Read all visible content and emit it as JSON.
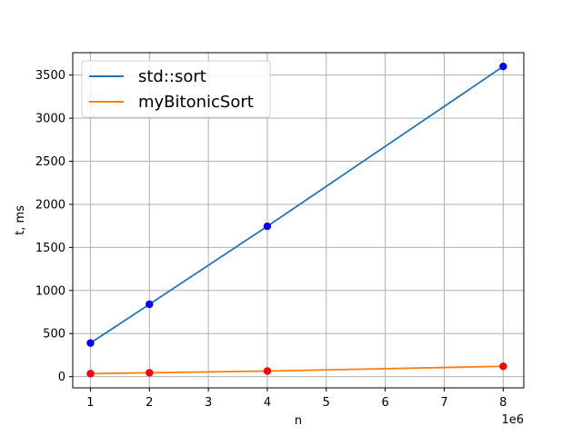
{
  "chart_data": {
    "type": "line",
    "title": "",
    "xlabel": "n",
    "ylabel": "t, ms",
    "x_offset_label": "1e6",
    "x_scale": 1000000,
    "xlim": [
      0.7,
      8.35
    ],
    "ylim": [
      -130,
      3760
    ],
    "x_ticks": [
      1,
      2,
      3,
      4,
      5,
      6,
      7,
      8
    ],
    "y_ticks": [
      0,
      500,
      1000,
      1500,
      2000,
      2500,
      3000,
      3500
    ],
    "grid": true,
    "legend_position": "top-left",
    "series": [
      {
        "name": "std::sort",
        "color": "#1f77b4",
        "marker_color": "#0000ff",
        "x": [
          1,
          2,
          4,
          8
        ],
        "y": [
          390,
          840,
          1745,
          3600
        ]
      },
      {
        "name": "myBitonicSort",
        "color": "#ff7f0e",
        "marker_color": "#ff0000",
        "x": [
          1,
          2,
          4,
          8
        ],
        "y": [
          35,
          45,
          65,
          120
        ]
      }
    ]
  }
}
